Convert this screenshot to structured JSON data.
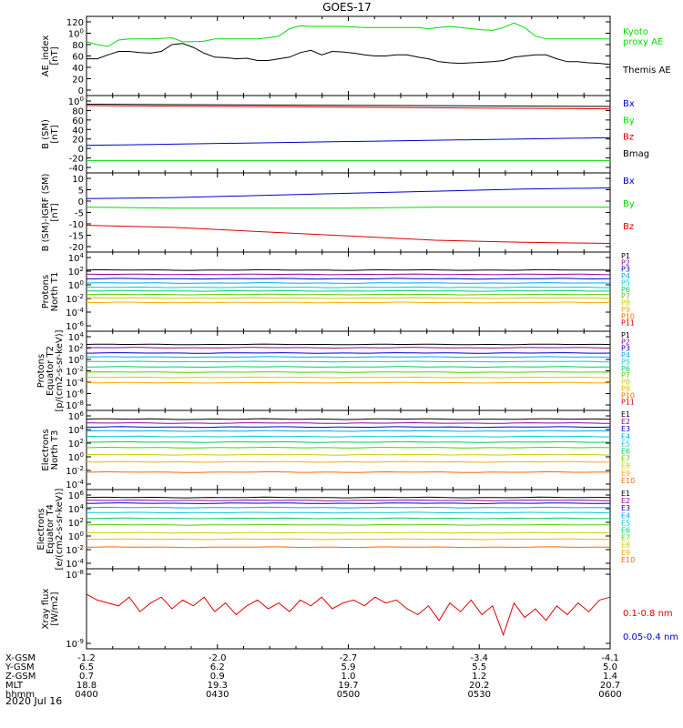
{
  "title": "GOES-17",
  "date_label": "2020 Jul 16",
  "colors": {
    "black": "#000000",
    "green": "#00dd00",
    "blue": "#0000cc",
    "red": "#dd0000",
    "p_colors": [
      "#000000",
      "#990099",
      "#0000cc",
      "#00aaee",
      "#00cccc",
      "#00cc66",
      "#55cc00",
      "#cccc00",
      "#ffaa00",
      "#ff6600",
      "#dd0000",
      "#990000"
    ]
  },
  "panels": [
    {
      "id": "ae",
      "ylabel": [
        "AE_index",
        "[nT]"
      ],
      "yticks": [
        "0",
        "20",
        "40",
        "60",
        "80",
        "100",
        "120"
      ],
      "ylim": [
        0,
        120
      ],
      "legend": [
        {
          "text": "Kyoto",
          "color": "#00dd00"
        },
        {
          "text": "proxy AE",
          "color": "#00dd00"
        },
        {
          "text": "Themis AE",
          "color": "#000000"
        }
      ]
    },
    {
      "id": "bsm",
      "ylabel": [
        "B (SM)",
        "[nT]"
      ],
      "yticks": [
        "-40",
        "-20",
        "0",
        "20",
        "40",
        "60",
        "80",
        "100"
      ],
      "ylim": [
        -45,
        100
      ],
      "legend": [
        {
          "text": "Bx",
          "color": "#0000cc"
        },
        {
          "text": "By",
          "color": "#00dd00"
        },
        {
          "text": "Bz",
          "color": "#dd0000"
        },
        {
          "text": "Bmag",
          "color": "#000000"
        }
      ]
    },
    {
      "id": "bigrf",
      "ylabel": [
        "B (SM)-IGRF (SM)",
        "[nT]"
      ],
      "yticks": [
        "-20",
        "-15",
        "-10",
        "-5",
        "0",
        "5",
        "10"
      ],
      "ylim": [
        -21,
        11
      ],
      "legend": [
        {
          "text": "Bx",
          "color": "#0000cc"
        },
        {
          "text": "By",
          "color": "#00dd00"
        },
        {
          "text": "Bz",
          "color": "#dd0000"
        }
      ]
    },
    {
      "id": "pn",
      "ylabel": [
        "Protons",
        "North T1"
      ],
      "yticks": [
        "10-6",
        "10-4",
        "10-2",
        "100",
        "102",
        "104"
      ],
      "ylim_log": [
        -7,
        4
      ],
      "legend_labels": [
        "P1",
        "P2",
        "P3",
        "P4",
        "P5",
        "P6",
        "P7",
        "P8",
        "P9",
        "P10",
        "P11"
      ]
    },
    {
      "id": "pe",
      "ylabel": [
        "Protons",
        "Equator T2",
        "[p/(cm2-s-sr-keV)]"
      ],
      "yticks": [
        "10-8",
        "10-6",
        "10-4",
        "10-2",
        "100",
        "102",
        "104"
      ],
      "ylim_log": [
        -8,
        4
      ],
      "legend_labels": [
        "P1",
        "P2",
        "P3",
        "P4",
        "P5",
        "P6",
        "P7",
        "P8",
        "P9",
        "P10",
        "P11"
      ]
    },
    {
      "id": "en",
      "ylabel": [
        "Electrons",
        "North T3"
      ],
      "yticks": [
        "10-4",
        "10-2",
        "100",
        "102",
        "104",
        "106"
      ],
      "ylim_log": [
        -4,
        6
      ],
      "legend_labels": [
        "E1",
        "E2",
        "E3",
        "E4",
        "E5",
        "E6",
        "E7",
        "E8",
        "E9",
        "E10"
      ]
    },
    {
      "id": "ee",
      "ylabel": [
        "Electrons",
        "Equator T4",
        "[e/(cm2-s-sr-keV)]"
      ],
      "yticks": [
        "10-4",
        "10-2",
        "100",
        "102",
        "104",
        "106"
      ],
      "ylim_log": [
        -5,
        6
      ],
      "legend_labels": [
        "E1",
        "E2",
        "E3",
        "E4",
        "E5",
        "E6",
        "E7",
        "E8",
        "E9",
        "E10"
      ]
    },
    {
      "id": "xray",
      "ylabel": [
        "Xray flux",
        "[W/m2]"
      ],
      "yticks": [
        "10-9",
        "10-8"
      ],
      "legend": [
        {
          "text": "0.1-0.8 nm",
          "color": "#dd0000"
        },
        {
          "text": "0.05-0.4 nm",
          "color": "#0000cc"
        }
      ]
    }
  ],
  "xaxis": {
    "row_labels": [
      "X-GSM",
      "Y-GSM",
      "Z-GSM",
      "MLT",
      "hhmm"
    ],
    "columns": [
      {
        "x_gsm": "-1.2",
        "y_gsm": "6.5",
        "z_gsm": "0.7",
        "mlt": "18.8",
        "hhmm": "0400"
      },
      {
        "x_gsm": "-2.0",
        "y_gsm": "6.2",
        "z_gsm": "0.9",
        "mlt": "19.3",
        "hhmm": "0430"
      },
      {
        "x_gsm": "-2.7",
        "y_gsm": "5.9",
        "z_gsm": "1.0",
        "mlt": "19.7",
        "hhmm": "0500"
      },
      {
        "x_gsm": "-3.4",
        "y_gsm": "5.5",
        "z_gsm": "1.2",
        "mlt": "20.2",
        "hhmm": "0530"
      },
      {
        "x_gsm": "-4.1",
        "y_gsm": "5.0",
        "z_gsm": "1.4",
        "mlt": "20.7",
        "hhmm": "0600"
      }
    ]
  },
  "chart_data": [
    {
      "type": "line",
      "x_range": [
        "0400",
        "0600"
      ],
      "ylabel": "AE_index [nT]",
      "ylim": [
        0,
        120
      ],
      "series": [
        {
          "name": "Kyoto proxy AE",
          "color": "#00dd00",
          "values": [
            85,
            80,
            77,
            88,
            90,
            90,
            90,
            91,
            92,
            85,
            85,
            86,
            90,
            90,
            90,
            90,
            90,
            92,
            95,
            108,
            113,
            112,
            112,
            112,
            112,
            111,
            110,
            110,
            110,
            110,
            110,
            110,
            108,
            110,
            112,
            110,
            108,
            106,
            105,
            110,
            118,
            110,
            95,
            90,
            90,
            90,
            90,
            90,
            90,
            90
          ]
        },
        {
          "name": "Themis AE",
          "color": "#000000",
          "values": [
            55,
            55,
            62,
            68,
            68,
            66,
            65,
            68,
            80,
            82,
            75,
            65,
            58,
            57,
            55,
            56,
            52,
            52,
            55,
            58,
            66,
            70,
            62,
            68,
            67,
            65,
            62,
            60,
            60,
            62,
            62,
            58,
            55,
            50,
            48,
            47,
            48,
            49,
            50,
            52,
            58,
            60,
            62,
            62,
            55,
            50,
            50,
            48,
            47,
            45
          ]
        }
      ]
    },
    {
      "type": "line",
      "ylabel": "B (SM) [nT]",
      "ylim": [
        -45,
        100
      ],
      "series": [
        {
          "name": "Bx",
          "color": "#0000cc",
          "values": [
            3,
            20
          ]
        },
        {
          "name": "By",
          "color": "#00dd00",
          "values": [
            -30,
            -30
          ]
        },
        {
          "name": "Bz",
          "color": "#dd0000",
          "values": [
            90,
            83
          ]
        },
        {
          "name": "Bmag",
          "color": "#000000",
          "values": [
            93,
            88
          ]
        }
      ]
    },
    {
      "type": "line",
      "ylabel": "B (SM)-IGRF (SM) [nT]",
      "ylim": [
        -21,
        11
      ],
      "series": [
        {
          "name": "Bx",
          "color": "#0000cc",
          "values": [
            1.5,
            2,
            3,
            4,
            5,
            6,
            6.5
          ]
        },
        {
          "name": "By",
          "color": "#00dd00",
          "values": [
            -2.5,
            -3,
            -3,
            -3,
            -2.5,
            -2.5,
            -2.5
          ]
        },
        {
          "name": "Bz",
          "color": "#dd0000",
          "values": [
            -11,
            -12,
            -14,
            -16,
            -18,
            -19,
            -19.5
          ]
        }
      ]
    },
    {
      "type": "line",
      "yscale": "log",
      "ylabel": "Protons North T1",
      "log10_levels": [
        1.5,
        0.9,
        0.3,
        -0.3,
        -0.9,
        -1.4,
        -1.9,
        -2.4,
        -3.0
      ]
    },
    {
      "type": "line",
      "yscale": "log",
      "ylabel": "Protons Equator T2 [p/(cm2-s-sr-keV)]",
      "log10_levels": [
        2.0,
        1.5,
        0.7,
        0.1,
        -0.6,
        -1.4,
        -2.2,
        -3.0,
        -3.8
      ]
    },
    {
      "type": "line",
      "yscale": "log",
      "ylabel": "Electrons North T3",
      "log10_levels": [
        4.9,
        4.4,
        3.9,
        3.4,
        2.7,
        2.0,
        1.3,
        0.4,
        -0.5,
        -1.8
      ]
    },
    {
      "type": "line",
      "yscale": "log",
      "ylabel": "Electrons Equator T4 [e/(cm2-s-sr-keV)]",
      "log10_levels": [
        4.9,
        4.5,
        4.1,
        3.5,
        2.8,
        2.0,
        1.1,
        0.0,
        -0.9,
        -2.0
      ]
    },
    {
      "type": "line",
      "yscale": "log",
      "ylabel": "Xray flux [W/m2]",
      "series": [
        {
          "name": "0.1-0.8 nm",
          "color": "#dd0000",
          "log10_values": [
            -8.25,
            -8.35,
            -8.4,
            -8.45,
            -8.3,
            -8.55,
            -8.4,
            -8.3,
            -8.5,
            -8.35,
            -8.45,
            -8.3,
            -8.55,
            -8.4,
            -8.6,
            -8.45,
            -8.35,
            -8.5,
            -8.4,
            -8.55,
            -8.35,
            -8.45,
            -8.3,
            -8.5,
            -8.4,
            -8.35,
            -8.45,
            -8.3,
            -8.4,
            -8.35,
            -8.5,
            -8.6,
            -8.45,
            -8.7,
            -8.4,
            -8.55,
            -8.35,
            -8.6,
            -8.45,
            -8.95,
            -8.4,
            -8.65,
            -8.5,
            -8.7,
            -8.45,
            -8.6,
            -8.4,
            -8.55,
            -8.35,
            -8.3
          ]
        }
      ]
    }
  ]
}
